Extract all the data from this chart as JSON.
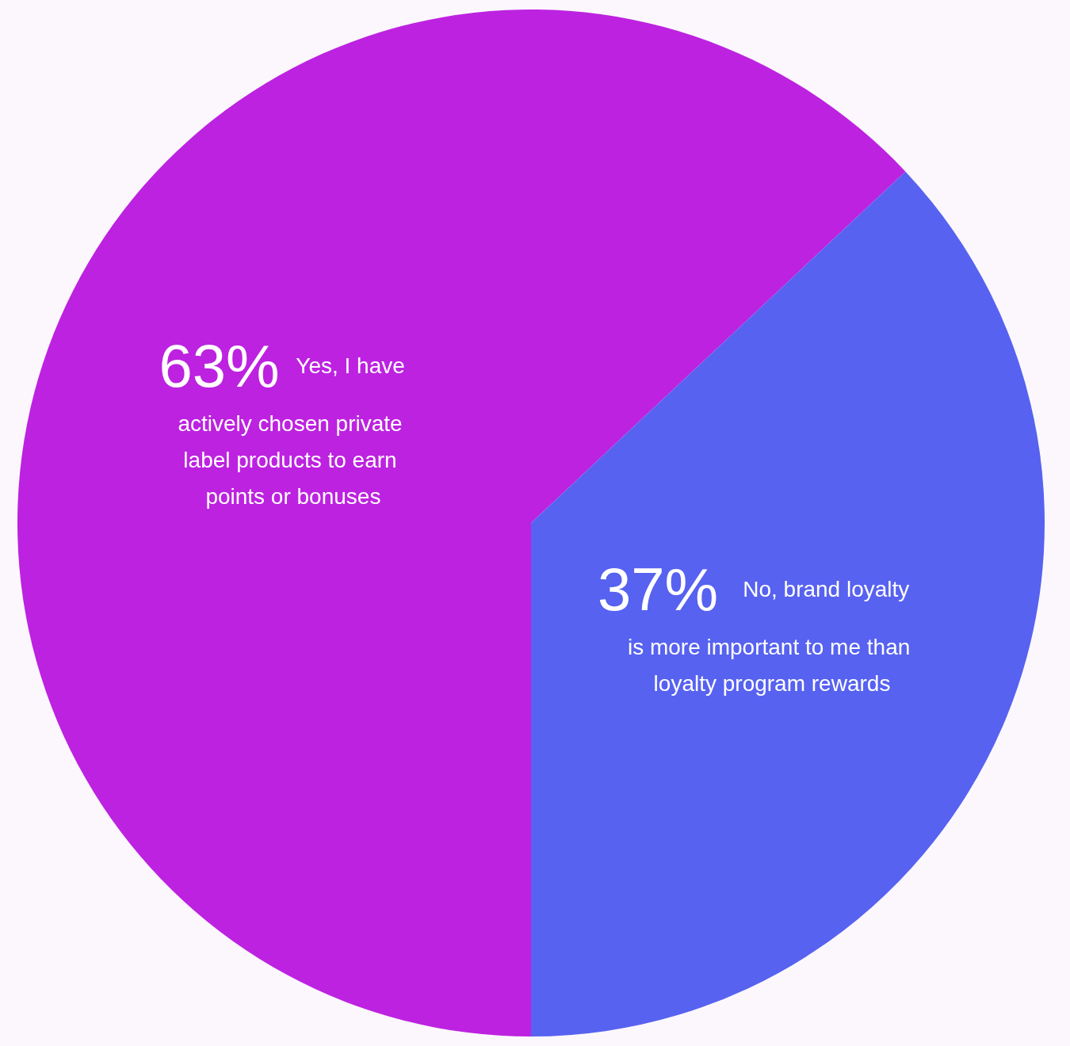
{
  "chart_data": {
    "type": "pie",
    "categories": [
      "Yes, I have actively chosen private label products to earn points or bonuses",
      "No, brand loyalty is more important to me than loyalty program rewards"
    ],
    "values": [
      63,
      37
    ],
    "value_labels": [
      "63%",
      "37%"
    ],
    "colors": [
      "#bd22e0",
      "#5762f0"
    ],
    "legend": false
  }
}
